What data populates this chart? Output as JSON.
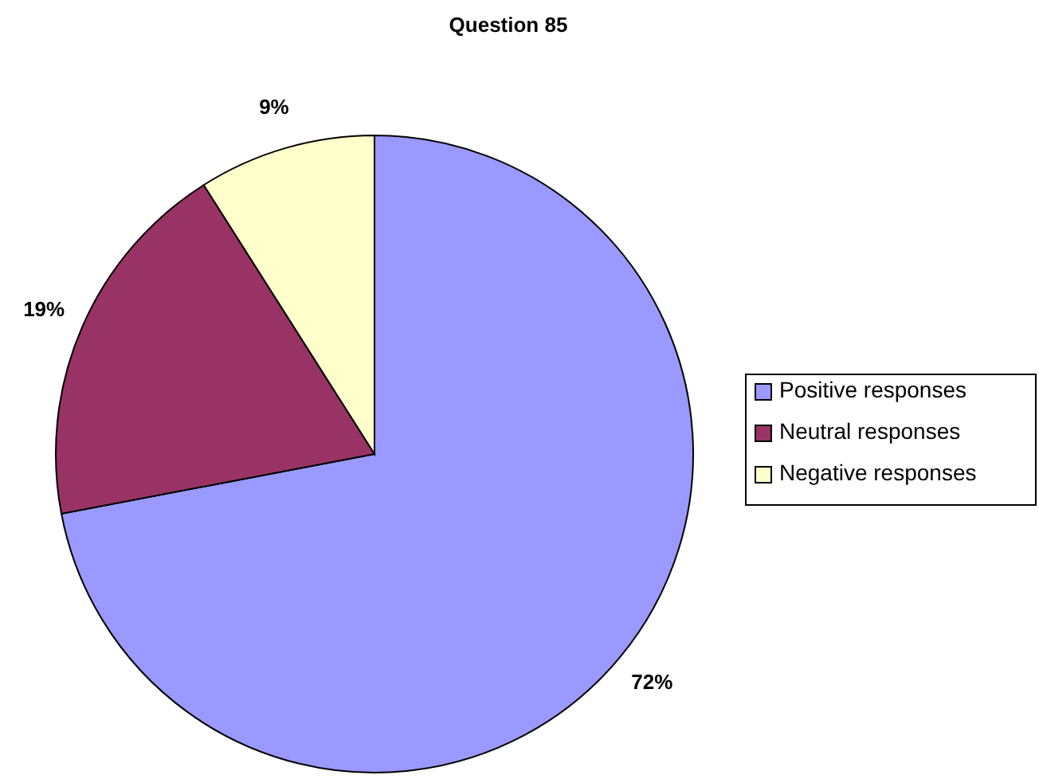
{
  "chart_data": {
    "type": "pie",
    "title": "Question 85",
    "categories": [
      "Positive responses",
      "Neutral responses",
      "Negative responses"
    ],
    "values": [
      72,
      19,
      9
    ],
    "colors": [
      "#9999ff",
      "#993366",
      "#ffffcc"
    ],
    "value_labels": [
      "72%",
      "19%",
      "9%"
    ],
    "legend": "right"
  }
}
